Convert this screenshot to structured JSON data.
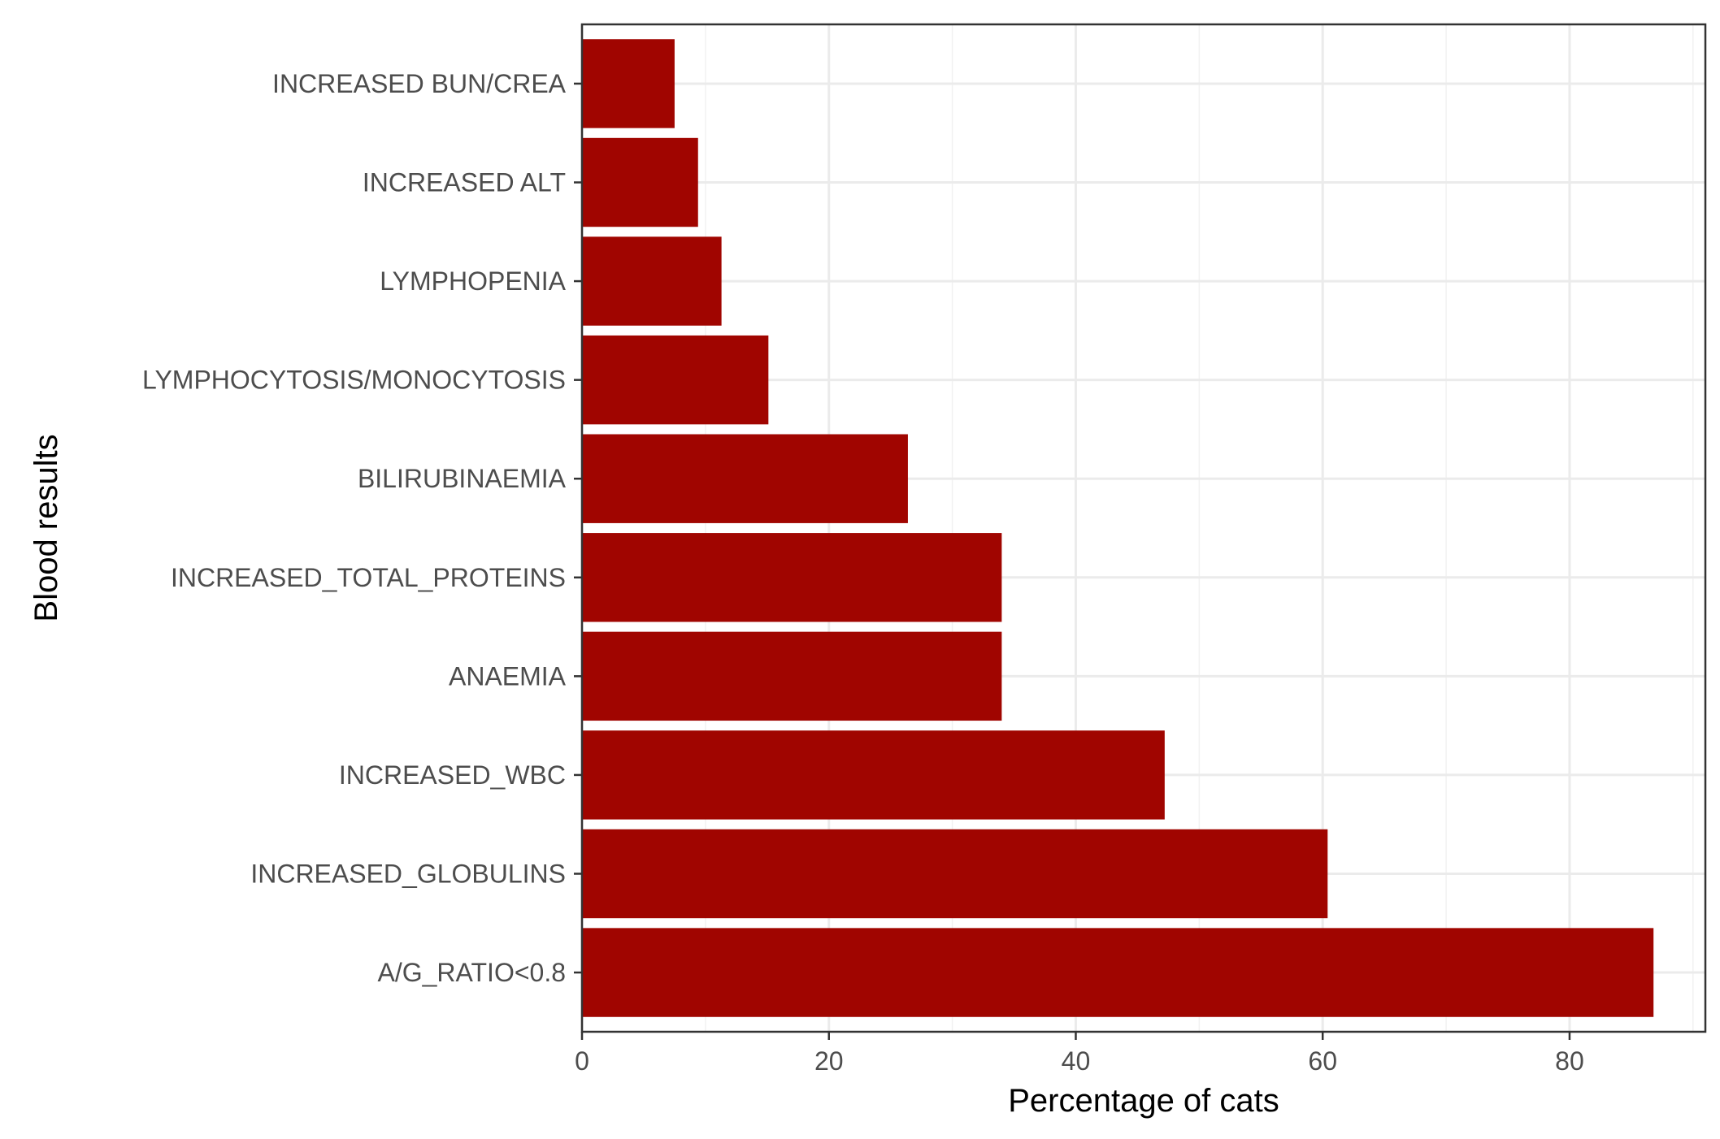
{
  "chart_data": {
    "type": "bar",
    "orientation": "horizontal",
    "title": "",
    "xlabel": "Percentage of cats",
    "ylabel": "Blood results",
    "xlim": [
      0,
      91
    ],
    "xticks": [
      0,
      20,
      40,
      60,
      80
    ],
    "grid": true,
    "legend": "none",
    "bar_color": "#a00500",
    "categories": [
      "INCREASED BUN/CREA",
      "INCREASED ALT",
      "LYMPHOPENIA",
      "LYMPHOCYTOSIS/MONOCYTOSIS",
      "BILIRUBINAEMIA",
      "INCREASED_TOTAL_PROTEINS",
      "ANAEMIA",
      "INCREASED_WBC",
      "INCREASED_GLOBULINS",
      "A/G_RATIO<0.8"
    ],
    "values": [
      7.5,
      9.4,
      11.3,
      15.1,
      26.4,
      34.0,
      34.0,
      47.2,
      60.4,
      86.8
    ]
  }
}
